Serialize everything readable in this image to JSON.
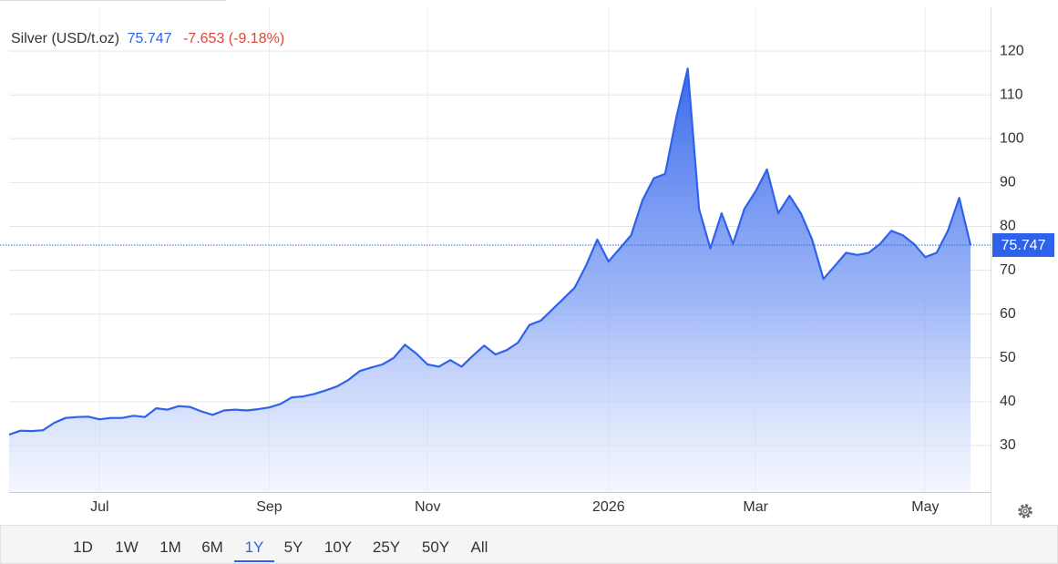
{
  "header": {
    "name": "Silver (USD/t.oz)",
    "price": 75.747,
    "change": -7.653,
    "change_pct": "(-9.18%)"
  },
  "ranges": [
    "1D",
    "1W",
    "1M",
    "6M",
    "1Y",
    "5Y",
    "10Y",
    "25Y",
    "50Y",
    "All"
  ],
  "selected_range": "1Y",
  "chart_data": {
    "type": "area",
    "categories": [
      null,
      null,
      null,
      null,
      null,
      null,
      null,
      null,
      "Jul",
      null,
      null,
      null,
      null,
      null,
      null,
      null,
      null,
      null,
      null,
      null,
      null,
      null,
      null,
      "Sep",
      null,
      null,
      null,
      null,
      null,
      null,
      null,
      null,
      null,
      null,
      null,
      null,
      null,
      "Nov",
      null,
      null,
      null,
      null,
      null,
      null,
      null,
      null,
      null,
      null,
      null,
      null,
      null,
      null,
      null,
      "2026",
      null,
      null,
      null,
      null,
      null,
      null,
      null,
      null,
      null,
      null,
      null,
      null,
      "Mar",
      null,
      null,
      null,
      null,
      null,
      null,
      null,
      null,
      null,
      null,
      null,
      null,
      null,
      null,
      "May",
      null,
      null,
      null,
      null
    ],
    "values": [
      32.5,
      33.4,
      33.3,
      33.5,
      35.2,
      36.3,
      36.5,
      36.6,
      36,
      36.3,
      36.3,
      36.8,
      36.5,
      38.5,
      38.2,
      39,
      38.8,
      37.8,
      37,
      38,
      38.2,
      38,
      38.3,
      38.7,
      39.5,
      41,
      41.2,
      41.8,
      42.6,
      43.5,
      45,
      47,
      47.8,
      48.5,
      50,
      53,
      51,
      48.5,
      48,
      49.5,
      48,
      50.5,
      52.8,
      50.8,
      51.8,
      53.5,
      57.5,
      58.5,
      61,
      63.5,
      66,
      71,
      77,
      72,
      75,
      78,
      86,
      91,
      92,
      105,
      116,
      84,
      75,
      83,
      76,
      84,
      88,
      93,
      83,
      87,
      83,
      77,
      68,
      71,
      74,
      73.5,
      74,
      76,
      79,
      78,
      76,
      73,
      74,
      79,
      86.5,
      75.747
    ],
    "color": "#2f62ea",
    "ylim": [
      19.4,
      130
    ],
    "yticks": [
      30,
      40,
      50,
      60,
      70,
      80,
      90,
      100,
      110,
      120
    ],
    "grid": true
  }
}
